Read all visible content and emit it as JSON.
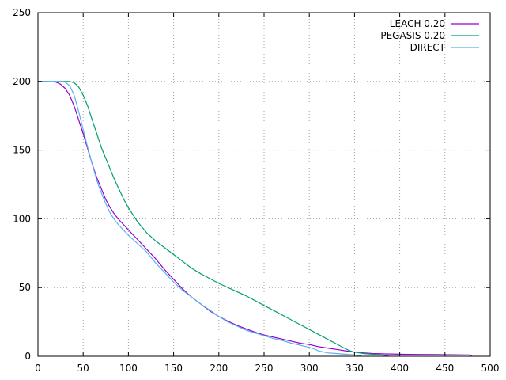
{
  "chart_data": {
    "type": "line",
    "title": "",
    "xlabel": "",
    "ylabel": "",
    "xlim": [
      0,
      500
    ],
    "ylim": [
      0,
      250
    ],
    "xticks": [
      0,
      50,
      100,
      150,
      200,
      250,
      300,
      350,
      400,
      450,
      500
    ],
    "yticks": [
      0,
      50,
      100,
      150,
      200,
      250
    ],
    "grid": true,
    "legend_position": "top-right",
    "series": [
      {
        "name": "LEACH 0.20",
        "color": "#9400d3",
        "points": [
          [
            0,
            200
          ],
          [
            10,
            200
          ],
          [
            20,
            199.5
          ],
          [
            25,
            198
          ],
          [
            30,
            195
          ],
          [
            35,
            190
          ],
          [
            40,
            182
          ],
          [
            45,
            172
          ],
          [
            50,
            162
          ],
          [
            55,
            151
          ],
          [
            60,
            140
          ],
          [
            65,
            130
          ],
          [
            70,
            122
          ],
          [
            75,
            114
          ],
          [
            80,
            108
          ],
          [
            85,
            103
          ],
          [
            90,
            99
          ],
          [
            100,
            92
          ],
          [
            110,
            85
          ],
          [
            120,
            78
          ],
          [
            130,
            71
          ],
          [
            140,
            63
          ],
          [
            150,
            56
          ],
          [
            160,
            49
          ],
          [
            170,
            43
          ],
          [
            180,
            38
          ],
          [
            190,
            33
          ],
          [
            200,
            29
          ],
          [
            210,
            25.5
          ],
          [
            220,
            22.5
          ],
          [
            230,
            20
          ],
          [
            240,
            17.5
          ],
          [
            250,
            15.5
          ],
          [
            260,
            14
          ],
          [
            270,
            12.5
          ],
          [
            280,
            11
          ],
          [
            290,
            9.5
          ],
          [
            300,
            8.5
          ],
          [
            310,
            7
          ],
          [
            320,
            6
          ],
          [
            330,
            5
          ],
          [
            340,
            4
          ],
          [
            350,
            3
          ],
          [
            360,
            2.5
          ],
          [
            370,
            2
          ],
          [
            380,
            1.8
          ],
          [
            400,
            1.5
          ],
          [
            420,
            1.3
          ],
          [
            440,
            1.2
          ],
          [
            460,
            1.1
          ],
          [
            477,
            1
          ],
          [
            478,
            0.5
          ],
          [
            480,
            0
          ]
        ]
      },
      {
        "name": "PEGASIS 0.20",
        "color": "#009e73",
        "points": [
          [
            0,
            200
          ],
          [
            10,
            200
          ],
          [
            20,
            200
          ],
          [
            30,
            200
          ],
          [
            35,
            200
          ],
          [
            40,
            199
          ],
          [
            45,
            196
          ],
          [
            50,
            190
          ],
          [
            55,
            182
          ],
          [
            60,
            172
          ],
          [
            65,
            162
          ],
          [
            70,
            152
          ],
          [
            75,
            144
          ],
          [
            80,
            136
          ],
          [
            85,
            128
          ],
          [
            90,
            121
          ],
          [
            95,
            114
          ],
          [
            100,
            108
          ],
          [
            110,
            98
          ],
          [
            120,
            90
          ],
          [
            130,
            84
          ],
          [
            140,
            79
          ],
          [
            150,
            74
          ],
          [
            160,
            69
          ],
          [
            170,
            64
          ],
          [
            180,
            60
          ],
          [
            190,
            56.5
          ],
          [
            200,
            53
          ],
          [
            210,
            50
          ],
          [
            220,
            47
          ],
          [
            230,
            44
          ],
          [
            240,
            40.5
          ],
          [
            250,
            37
          ],
          [
            260,
            33.5
          ],
          [
            270,
            30
          ],
          [
            280,
            26.5
          ],
          [
            290,
            23
          ],
          [
            300,
            19.5
          ],
          [
            310,
            16
          ],
          [
            320,
            12.5
          ],
          [
            330,
            9
          ],
          [
            340,
            5.5
          ],
          [
            345,
            4
          ],
          [
            350,
            3
          ],
          [
            360,
            2
          ],
          [
            370,
            1.5
          ],
          [
            380,
            1
          ],
          [
            385,
            0.5
          ],
          [
            388,
            0
          ]
        ]
      },
      {
        "name": "DIRECT",
        "color": "#56b4e9",
        "points": [
          [
            0,
            200
          ],
          [
            10,
            200
          ],
          [
            20,
            200
          ],
          [
            25,
            200
          ],
          [
            30,
            199.5
          ],
          [
            35,
            197
          ],
          [
            40,
            190
          ],
          [
            45,
            178
          ],
          [
            50,
            165
          ],
          [
            55,
            152
          ],
          [
            60,
            140
          ],
          [
            65,
            128
          ],
          [
            70,
            119
          ],
          [
            75,
            111
          ],
          [
            80,
            104
          ],
          [
            85,
            99
          ],
          [
            90,
            95
          ],
          [
            100,
            88
          ],
          [
            110,
            82
          ],
          [
            120,
            76
          ],
          [
            130,
            68
          ],
          [
            140,
            61
          ],
          [
            150,
            54
          ],
          [
            160,
            48
          ],
          [
            170,
            43
          ],
          [
            180,
            38
          ],
          [
            190,
            33.5
          ],
          [
            200,
            29
          ],
          [
            210,
            25
          ],
          [
            220,
            22
          ],
          [
            230,
            19
          ],
          [
            240,
            17
          ],
          [
            250,
            15
          ],
          [
            260,
            13
          ],
          [
            270,
            11.5
          ],
          [
            280,
            9.5
          ],
          [
            290,
            8
          ],
          [
            300,
            6.5
          ],
          [
            305,
            5.5
          ],
          [
            310,
            4
          ],
          [
            320,
            2.5
          ],
          [
            330,
            2
          ],
          [
            340,
            1.5
          ],
          [
            350,
            1
          ],
          [
            355,
            0.5
          ],
          [
            358,
            0
          ]
        ]
      }
    ]
  }
}
